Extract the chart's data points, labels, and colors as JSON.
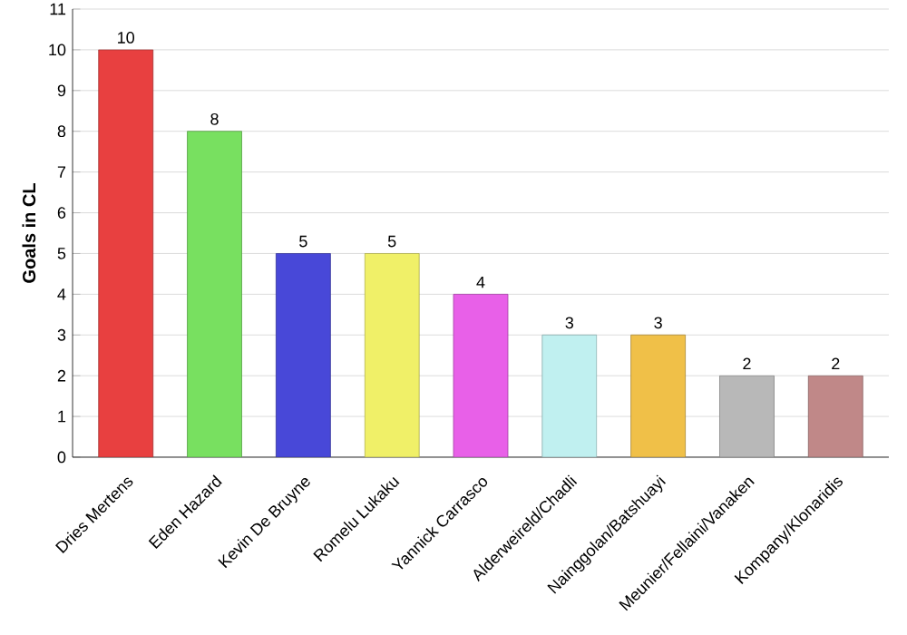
{
  "chart_data": {
    "type": "bar",
    "ylabel": "Goals in CL",
    "categories": [
      "Dries Mertens",
      "Eden Hazard",
      "Kevin De Bruyne",
      "Romelu Lukaku",
      "Yannick Carrasco",
      "Alderweireld/Chadli",
      "Nainggolan/Batshuayi",
      "Meunier/Fellaini/Vanaken",
      "Kompany/Klonaridis"
    ],
    "values": [
      10,
      8,
      5,
      5,
      4,
      3,
      3,
      2,
      2
    ],
    "colors": [
      "#e84040",
      "#78e060",
      "#4848d8",
      "#f0f068",
      "#e860e8",
      "#c0f0f0",
      "#f0c048",
      "#b8b8b8",
      "#c08888"
    ],
    "ylim": [
      0,
      11
    ],
    "yticks": [
      0,
      1,
      2,
      3,
      4,
      5,
      6,
      7,
      8,
      9,
      10,
      11
    ],
    "grid": "y",
    "data_labels": true
  }
}
